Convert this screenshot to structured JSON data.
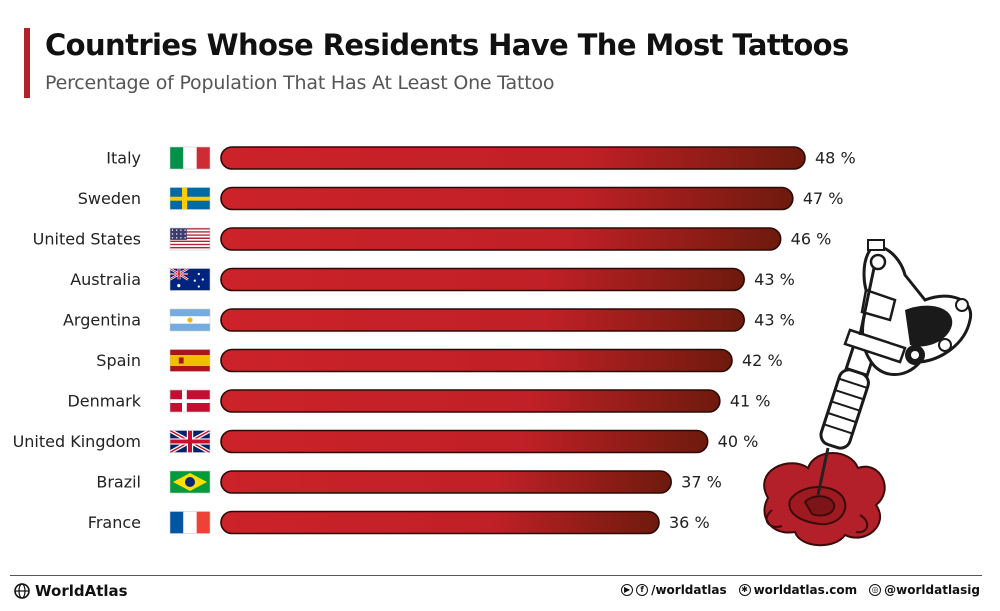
{
  "chart_data": {
    "type": "bar",
    "orientation": "horizontal",
    "title": "Countries Whose Residents Have The Most Tattoos",
    "subtitle": "Percentage of Population That Has At Least One Tattoo",
    "categories": [
      "Italy",
      "Sweden",
      "United States",
      "Australia",
      "Argentina",
      "Spain",
      "Denmark",
      "United Kingdom",
      "Brazil",
      "France"
    ],
    "values": [
      48,
      47,
      46,
      43,
      43,
      42,
      41,
      40,
      37,
      36
    ],
    "value_labels": [
      "48 %",
      "47 %",
      "46 %",
      "43 %",
      "43 %",
      "42 %",
      "41 %",
      "40 %",
      "37 %",
      "36 %"
    ],
    "flags": [
      "italy-flag",
      "sweden-flag",
      "united-states-flag",
      "australia-flag",
      "argentina-flag",
      "spain-flag",
      "denmark-flag",
      "united-kingdom-flag",
      "brazil-flag",
      "france-flag"
    ],
    "xlim": [
      0,
      48
    ],
    "grid": false,
    "legend": "none",
    "bar_color_start": "#cc2229",
    "bar_color_end": "#6e1a0d"
  },
  "footer": {
    "brand": "WorldAtlas",
    "social": {
      "handle": "/worldatlas",
      "site": "worldatlas.com",
      "instagram": "@worldatlasig"
    }
  }
}
